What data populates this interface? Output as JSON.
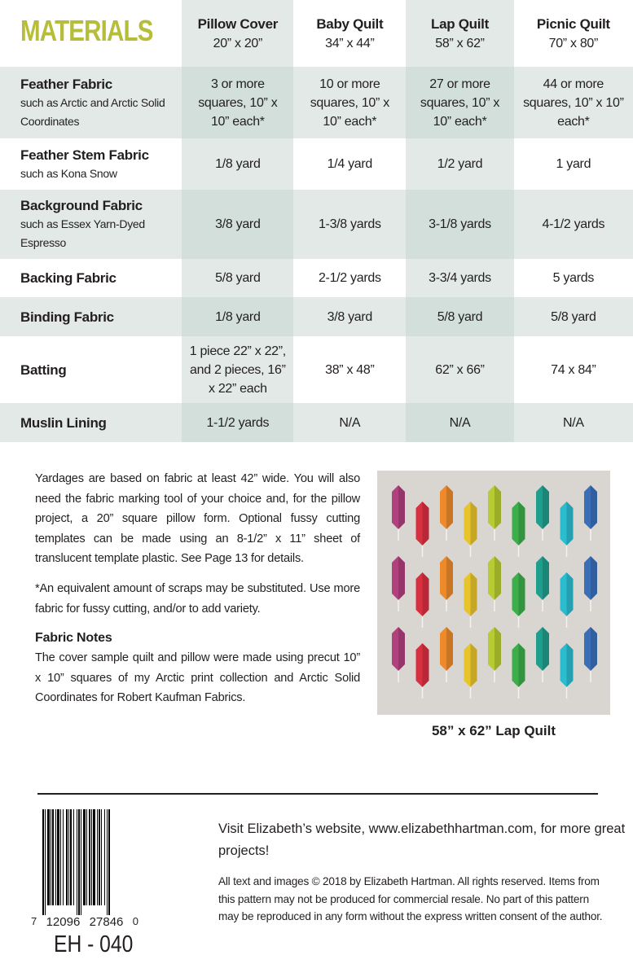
{
  "title": "MATERIALS",
  "columns": [
    {
      "name": "Pillow Cover",
      "size": "20” x 20”"
    },
    {
      "name": "Baby Quilt",
      "size": "34” x 44”"
    },
    {
      "name": "Lap Quilt",
      "size": "58” x 62”"
    },
    {
      "name": "Picnic Quilt",
      "size": "70” x 80”"
    }
  ],
  "rows": [
    {
      "name": "Feather Fabric",
      "sub": "such as Arctic and Arctic Solid Coordinates",
      "values": [
        "3 or more squares, 10” x 10” each*",
        "10 or more squares, 10” x 10” each*",
        "27 or more squares, 10” x 10” each*",
        "44 or more squares, 10” x 10” each*"
      ]
    },
    {
      "name": "Feather Stem Fabric",
      "sub": "such as Kona Snow",
      "values": [
        "1/8 yard",
        "1/4 yard",
        "1/2 yard",
        "1 yard"
      ]
    },
    {
      "name": "Background Fabric",
      "sub": "such as Essex Yarn-Dyed Espresso",
      "values": [
        "3/8 yard",
        "1-3/8 yards",
        "3-1/8 yards",
        "4-1/2 yards"
      ]
    },
    {
      "name": "Backing Fabric",
      "sub": "",
      "values": [
        "5/8 yard",
        "2-1/2 yards",
        "3-3/4 yards",
        "5 yards"
      ]
    },
    {
      "name": "Binding Fabric",
      "sub": "",
      "values": [
        "1/8 yard",
        "3/8 yard",
        "5/8 yard",
        "5/8 yard"
      ]
    },
    {
      "name": "Batting",
      "sub": "",
      "values": [
        "1 piece 22” x 22”, and 2 pieces, 16” x 22” each",
        "38” x 48”",
        "62” x 66”",
        "74 x 84”"
      ]
    },
    {
      "name": "Muslin Lining",
      "sub": "",
      "values": [
        "1-1/2 yards",
        "N/A",
        "N/A",
        "N/A"
      ]
    }
  ],
  "notes": {
    "p1": "Yardages are based on fabric at least 42” wide. You will also need the fabric marking tool of your choice and, for the pillow project, a 20” square pillow form. Optional fussy cutting templates can be made using an 8-1/2” x 11” sheet of translucent template plastic. See Page 13 for details.",
    "p2": "*An equivalent amount of scraps may be substituted. Use more fabric for fussy cutting, and/or to add variety.",
    "heading": "Fabric Notes",
    "p3": "The cover sample quilt and pillow were made using precut 10” x 10” squares of my Arctic print collection and Arctic Solid Coordinates for Robert Kaufman Fabrics."
  },
  "quilt": {
    "caption": "58” x 62” Lap Quilt",
    "background": "#d9d6d1",
    "feather_colors": [
      "#b0407e",
      "#d93040",
      "#ee8a2a",
      "#e8c42c",
      "#b6cc32",
      "#3cae4a",
      "#1f9e8e",
      "#2cbcd0",
      "#3a6fb8"
    ]
  },
  "barcode": {
    "digits": [
      "7",
      "12096",
      "27846",
      "0"
    ],
    "sku": "EH - 040"
  },
  "footer": {
    "visit": "Visit Elizabeth’s website, www.elizabethhartman.com, for more great projects!",
    "legal": "All text and images © 2018 by Elizabeth Hartman. All rights reserved. Items from this pattern may not be produced for commercial resale. No part of this pattern may be reproduced in any form without the express written consent of the author."
  },
  "colors": {
    "title": "#b5bd3a",
    "shade": "#e2e9e6",
    "shade_dark": "#d2dfdb"
  }
}
